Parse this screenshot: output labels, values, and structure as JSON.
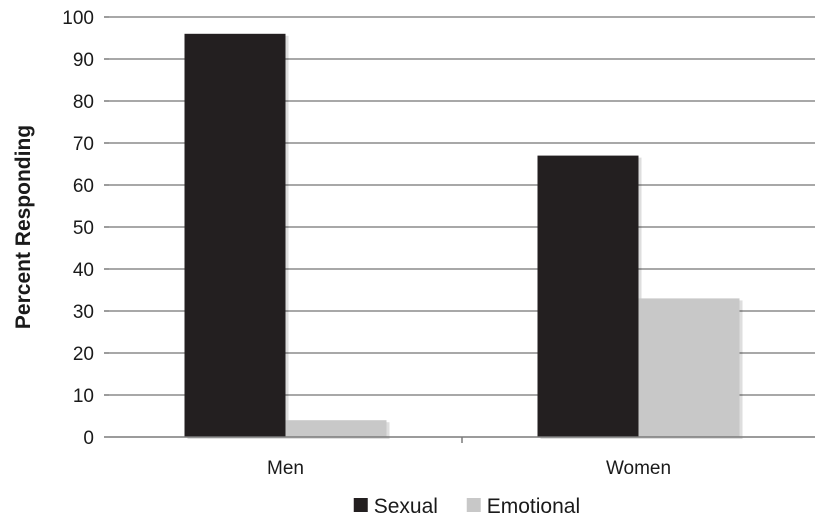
{
  "chart_data": {
    "type": "bar",
    "categories": [
      "Men",
      "Women"
    ],
    "series": [
      {
        "name": "Sexual",
        "values": [
          96,
          67
        ],
        "color": "#231f20"
      },
      {
        "name": "Emotional",
        "values": [
          4,
          33
        ],
        "color": "#c8c8c8"
      }
    ],
    "ylabel": "Percent Responding",
    "ylim": [
      0,
      100
    ],
    "yticks": [
      0,
      10,
      20,
      30,
      40,
      50,
      60,
      70,
      80,
      90,
      100
    ],
    "grid": true,
    "legend_position": "bottom"
  }
}
